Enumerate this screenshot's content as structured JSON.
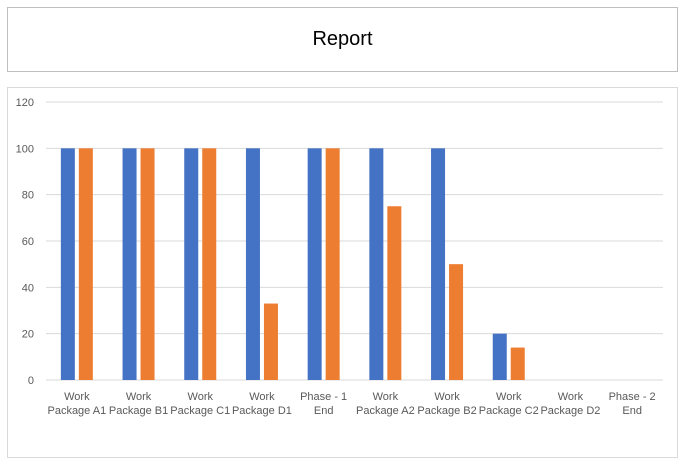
{
  "title": "Report",
  "chart_data": {
    "type": "bar",
    "categories": [
      [
        "Work",
        "Package A1"
      ],
      [
        "Work",
        "Package B1"
      ],
      [
        "Work",
        "Package C1"
      ],
      [
        "Work",
        "Package D1"
      ],
      [
        "Phase - 1",
        "End"
      ],
      [
        "Work",
        "Package A2"
      ],
      [
        "Work",
        "Package B2"
      ],
      [
        "Work",
        "Package C2"
      ],
      [
        "Work",
        "Package D2"
      ],
      [
        "Phase - 2",
        "End"
      ]
    ],
    "series": [
      {
        "color": "#4472c4",
        "values": [
          100,
          100,
          100,
          100,
          100,
          100,
          100,
          20,
          0,
          0
        ]
      },
      {
        "color": "#ed7d31",
        "values": [
          100,
          100,
          100,
          33,
          100,
          75,
          50,
          14,
          0,
          0
        ]
      }
    ],
    "yticks": [
      0,
      20,
      40,
      60,
      80,
      100,
      120
    ],
    "ylim": [
      0,
      120
    ],
    "grid": true,
    "gridColor": "#d9d9d9",
    "xlabel": "",
    "ylabel": ""
  }
}
